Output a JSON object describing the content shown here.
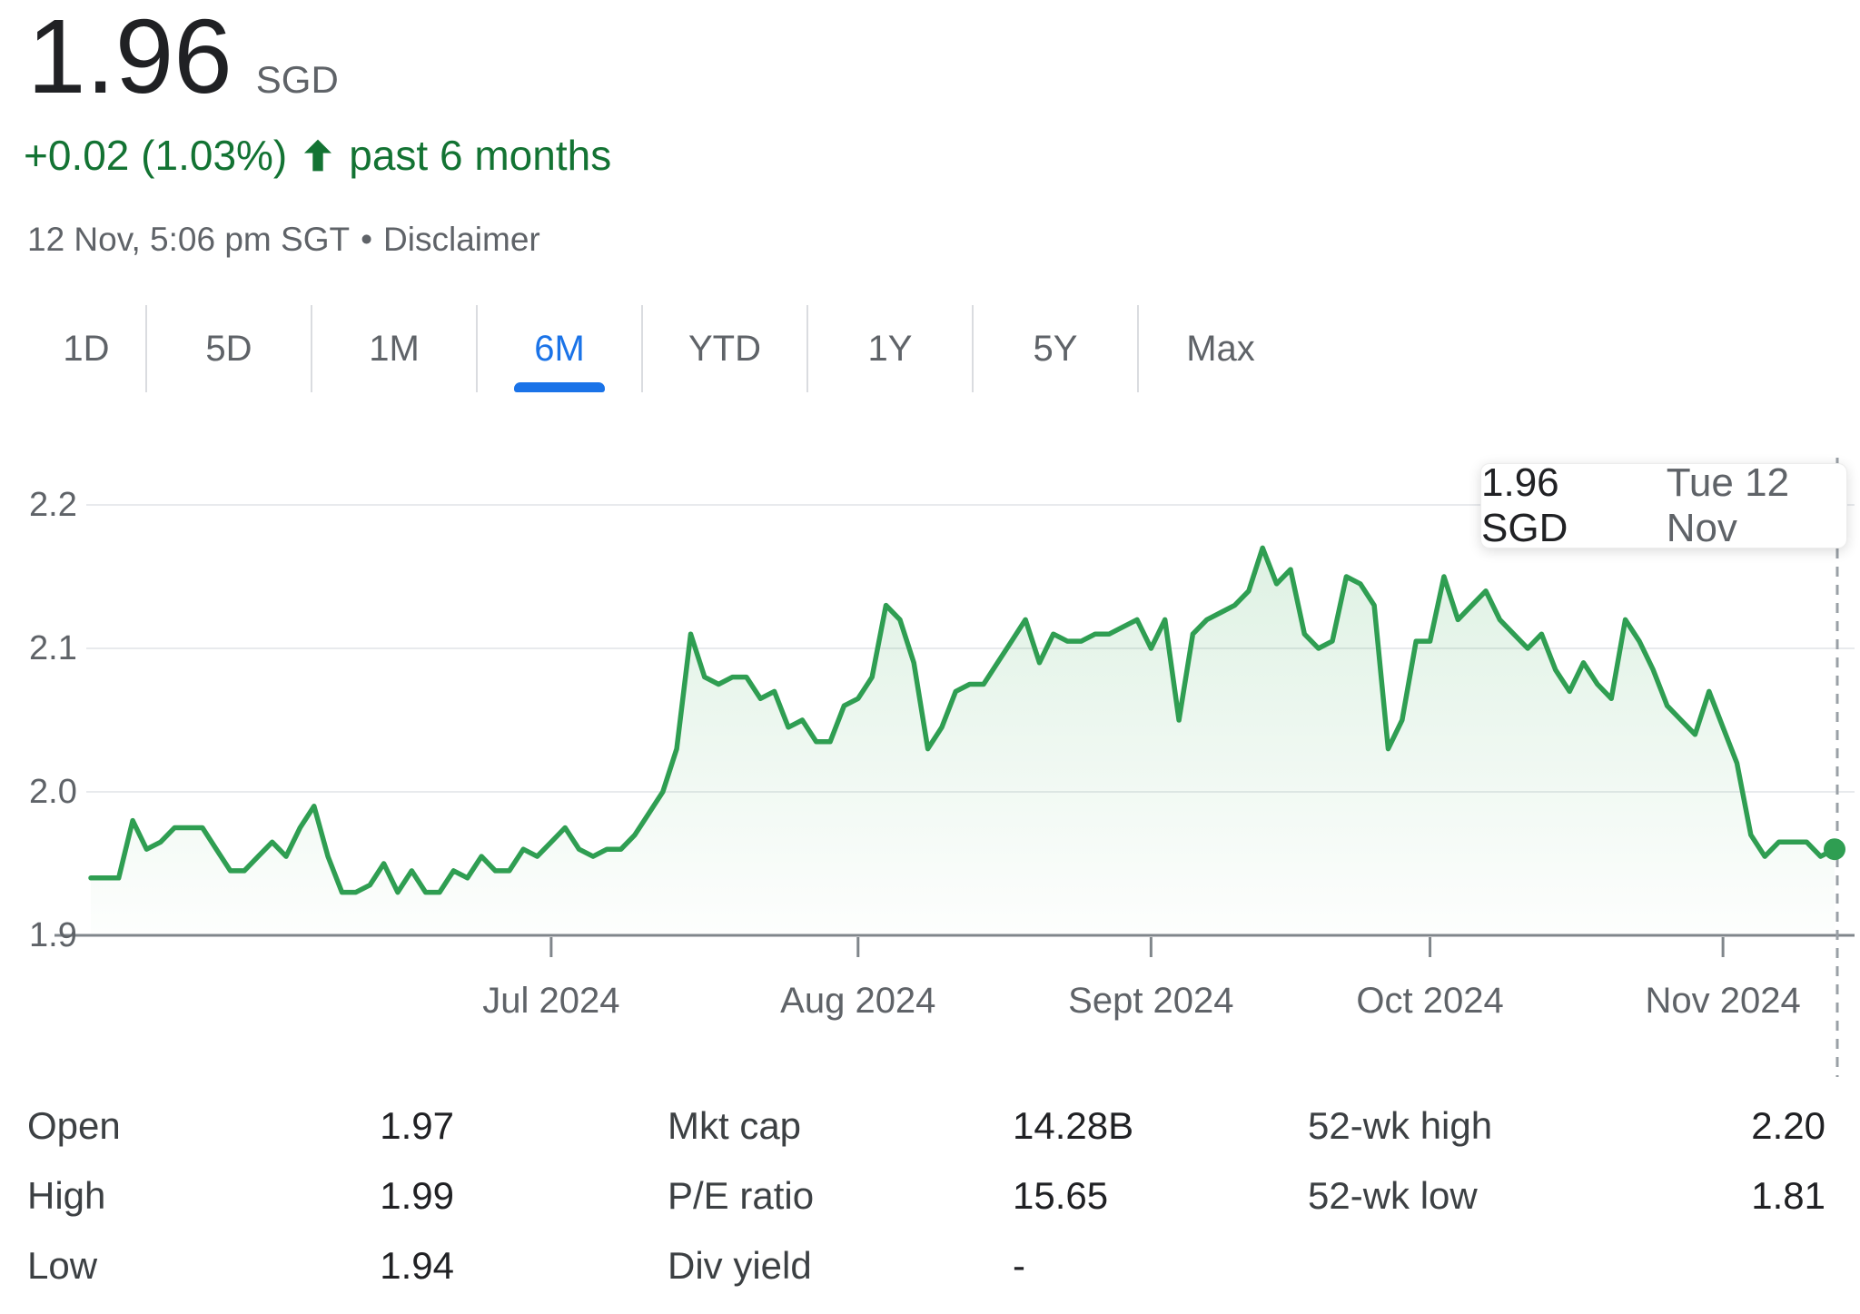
{
  "header": {
    "price": "1.96",
    "currency": "SGD",
    "change": "+0.02 (1.03%)",
    "change_direction": "up",
    "change_period": "past 6 months",
    "timestamp": "12 Nov, 5:06 pm SGT",
    "separator": "•",
    "disclaimer": "Disclaimer"
  },
  "tabs": {
    "items": [
      "1D",
      "5D",
      "1M",
      "6M",
      "YTD",
      "1Y",
      "5Y",
      "Max"
    ],
    "active": "6M"
  },
  "tooltip": {
    "price": "1.96 SGD",
    "date": "Tue 12 Nov"
  },
  "chart_data": {
    "type": "line",
    "title": "Price, past 6 months",
    "currency": "SGD",
    "ylim": [
      1.895,
      2.21
    ],
    "yticks": [
      1.9,
      2.0,
      2.1,
      2.2
    ],
    "grid": true,
    "xticks": [
      {
        "label": "Jul 2024",
        "index": 33
      },
      {
        "label": "Aug 2024",
        "index": 55
      },
      {
        "label": "Sept 2024",
        "index": 76
      },
      {
        "label": "Oct 2024",
        "index": 96
      },
      {
        "label": "Nov 2024",
        "index": 117
      }
    ],
    "values": [
      1.94,
      1.94,
      1.94,
      1.98,
      1.96,
      1.965,
      1.975,
      1.975,
      1.975,
      1.96,
      1.945,
      1.945,
      1.955,
      1.965,
      1.955,
      1.975,
      1.99,
      1.955,
      1.93,
      1.93,
      1.935,
      1.95,
      1.93,
      1.945,
      1.93,
      1.93,
      1.945,
      1.94,
      1.955,
      1.945,
      1.945,
      1.96,
      1.955,
      1.965,
      1.975,
      1.96,
      1.955,
      1.96,
      1.96,
      1.97,
      1.985,
      2.0,
      2.03,
      2.11,
      2.08,
      2.075,
      2.08,
      2.08,
      2.065,
      2.07,
      2.045,
      2.05,
      2.035,
      2.035,
      2.06,
      2.065,
      2.08,
      2.13,
      2.12,
      2.09,
      2.03,
      2.045,
      2.07,
      2.075,
      2.075,
      2.09,
      2.105,
      2.12,
      2.09,
      2.11,
      2.105,
      2.105,
      2.11,
      2.11,
      2.115,
      2.12,
      2.1,
      2.12,
      2.05,
      2.11,
      2.12,
      2.125,
      2.13,
      2.14,
      2.17,
      2.145,
      2.155,
      2.11,
      2.1,
      2.105,
      2.15,
      2.145,
      2.13,
      2.03,
      2.05,
      2.105,
      2.105,
      2.15,
      2.12,
      2.13,
      2.14,
      2.12,
      2.11,
      2.1,
      2.11,
      2.085,
      2.07,
      2.09,
      2.075,
      2.065,
      2.12,
      2.105,
      2.085,
      2.06,
      2.05,
      2.04,
      2.07,
      2.045,
      2.02,
      1.97,
      1.955,
      1.965,
      1.965,
      1.965,
      1.955,
      1.96
    ],
    "last_value": 1.96,
    "line_color": "#2f9e52",
    "fill_color": "#34a853",
    "crosshair": {
      "style": "dashed",
      "at_last_point": true
    },
    "legend": "none"
  },
  "stats": {
    "columns": [
      [
        {
          "label": "Open",
          "value": "1.97"
        },
        {
          "label": "High",
          "value": "1.99"
        },
        {
          "label": "Low",
          "value": "1.94"
        }
      ],
      [
        {
          "label": "Mkt cap",
          "value": "14.28B"
        },
        {
          "label": "P/E ratio",
          "value": "15.65"
        },
        {
          "label": "Div yield",
          "value": "-"
        }
      ],
      [
        {
          "label": "52-wk high",
          "value": "2.20"
        },
        {
          "label": "52-wk low",
          "value": "1.81"
        }
      ]
    ]
  },
  "colors": {
    "accent_blue": "#1a73e8",
    "positive_green": "#137333",
    "line_green": "#2f9e52",
    "axis_gray": "#80868b",
    "grid_gray": "#e8eaed",
    "text_gray": "#5f6368"
  }
}
